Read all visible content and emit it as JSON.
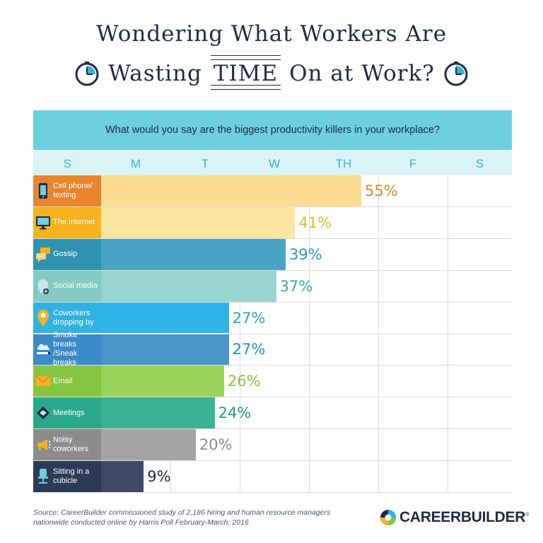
{
  "title": {
    "line1": "Wondering What Workers Are",
    "line2_pre": "Wasting",
    "line2_emph": "TIME",
    "line2_post": "On at Work?"
  },
  "question": "What would you say are the biggest productivity killers in your workplace?",
  "chart_data": {
    "type": "bar",
    "orientation": "horizontal",
    "question": "What would you say are the biggest productivity killers in your workplace?",
    "x_axis_labels": [
      "S",
      "M",
      "T",
      "W",
      "TH",
      "F",
      "S"
    ],
    "categories": [
      "Cell phone/ texting",
      "The Internet",
      "Gossip",
      "Social media",
      "Coworkers dropping by",
      "Smoke breaks /Sneak breaks",
      "Email",
      "Meetings",
      "Noisy coworkers",
      "Sitting in a cubicle"
    ],
    "values": [
      55,
      41,
      39,
      37,
      27,
      27,
      26,
      24,
      20,
      9
    ],
    "value_labels": [
      "55%",
      "41%",
      "39%",
      "37%",
      "27%",
      "27%",
      "26%",
      "24%",
      "20%",
      "9%"
    ],
    "unit": "%",
    "icons": [
      "phone-icon",
      "monitor-icon",
      "chat-bubbles-icon",
      "person-head-icon",
      "map-pin-icon",
      "cloud-icon",
      "envelope-icon",
      "handshake-icon",
      "megaphone-icon",
      "office-chair-icon"
    ],
    "label_colors": [
      "#e8842e",
      "#f6b31f",
      "#2f93b0",
      "#86cbc3",
      "#2fb2e2",
      "#3b8bc8",
      "#86c541",
      "#2aa88c",
      "#8c8c8c",
      "#2c3a56"
    ],
    "bar_colors": [
      "#fcdb92",
      "#fde5a2",
      "#48a4c2",
      "#98d6cf",
      "#2db3e7",
      "#4a94cc",
      "#9ad35a",
      "#39b393",
      "#a3a3a3",
      "#3e4a66"
    ],
    "value_colors": [
      "#e0862a",
      "#f0b429",
      "#2d97b5",
      "#3aa9b0",
      "#2aa6c2",
      "#2a8dbd",
      "#86c541",
      "#1e9a82",
      "#8c8c8c",
      "#1d2a44"
    ]
  },
  "source": "Source: CareerBuilder commissioned study of 2,186 hiring and human resource managers nationwide conducted online by Harris Poll February-March, 2016",
  "brand": {
    "name": "CAREERBUILDER",
    "tm": "®"
  }
}
